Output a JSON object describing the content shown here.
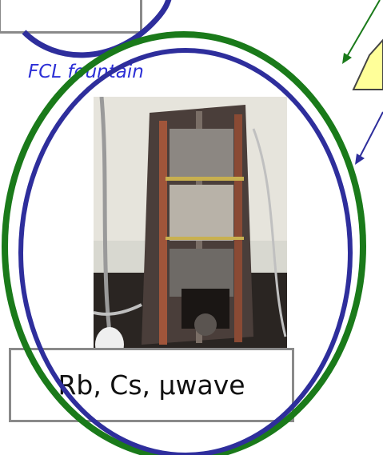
{
  "caption": "FCL fountain",
  "label": "Rb, Cs, μwave",
  "colors": {
    "blue_ring": "#2e2e9c",
    "green_ring": "#1a7a1a",
    "box_border": "#8a8a8a",
    "caption_text": "#2c2fd6",
    "callout_fill": "#ffff99"
  },
  "photo": {
    "description_icon": "fountain-apparatus-photo"
  }
}
